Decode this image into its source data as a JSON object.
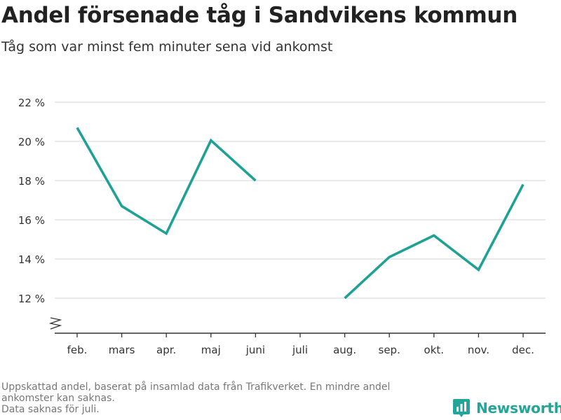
{
  "header": {
    "title": "Andel försenade tåg i Sandvikens kommun",
    "subtitle": "Tåg som var minst fem minuter sena vid ankomst"
  },
  "footnote": {
    "line1": "Uppskattad andel, baserat på insamlad data från Trafikverket. En mindre andel",
    "line2": "ankomster kan saknas.",
    "line3": "Data saknas för juli."
  },
  "brand": {
    "name": "Newsworthy",
    "icon": "newsworthy-logo-icon"
  },
  "colors": {
    "line": "#1fa195",
    "grid": "#dddddd",
    "axis": "#333333",
    "brand": "#23a597"
  },
  "chart_data": {
    "type": "line",
    "categories": [
      "feb.",
      "mars",
      "apr.",
      "maj",
      "juni",
      "juli",
      "aug.",
      "sep.",
      "okt.",
      "nov.",
      "dec."
    ],
    "series": [
      {
        "values": [
          20.7,
          16.7,
          15.3,
          20.05,
          18.0,
          null,
          12.0,
          14.1,
          15.2,
          13.45,
          17.8
        ]
      }
    ],
    "yticks": [
      12,
      14,
      16,
      18,
      20,
      22
    ],
    "ytick_labels": [
      "12 %",
      "14 %",
      "16 %",
      "18 %",
      "20 %",
      "22 %"
    ],
    "ylim": [
      10.3,
      22
    ],
    "y_axis_break": true,
    "grid": true,
    "xlabel": "",
    "ylabel": ""
  }
}
